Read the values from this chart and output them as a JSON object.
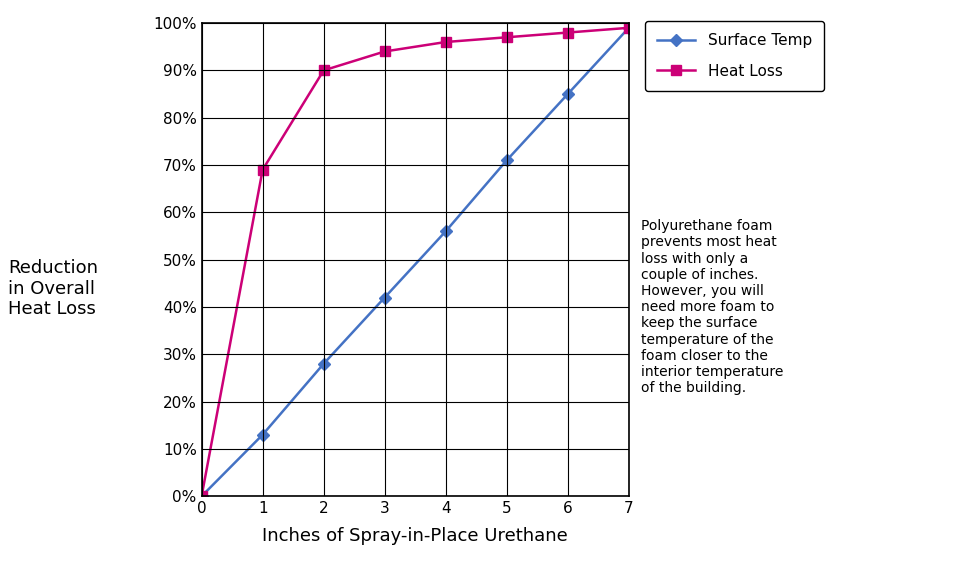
{
  "x": [
    0,
    1,
    2,
    3,
    4,
    5,
    6,
    7
  ],
  "surface_temp": [
    0,
    13,
    28,
    42,
    56,
    71,
    85,
    99
  ],
  "heat_loss": [
    0,
    69,
    90,
    94,
    96,
    97,
    98,
    99
  ],
  "surface_temp_color": "#4472C4",
  "heat_loss_color": "#CC0077",
  "xlabel": "Inches of Spray-in-Place Urethane",
  "ylabel": "Reduction\nin Overall\nHeat Loss",
  "ytick_labels": [
    "0%",
    "10%",
    "20%",
    "30%",
    "40%",
    "50%",
    "60%",
    "70%",
    "80%",
    "90%",
    "100%"
  ],
  "ytick_values": [
    0,
    10,
    20,
    30,
    40,
    50,
    60,
    70,
    80,
    90,
    100
  ],
  "xlim": [
    0,
    7
  ],
  "ylim": [
    0,
    100
  ],
  "legend_labels": [
    "Surface Temp",
    "Heat Loss"
  ],
  "annotation_text": "Polyurethane foam\nprevents most heat\nloss with only a\ncouple of inches.\nHowever, you will\nneed more foam to\nkeep the surface\ntemperature of the\nfoam closer to the\ninterior temperature\nof the building.",
  "bg_color": "#FFFFFF",
  "grid_color": "#000000",
  "surface_temp_marker": "D",
  "heat_loss_marker": "s"
}
